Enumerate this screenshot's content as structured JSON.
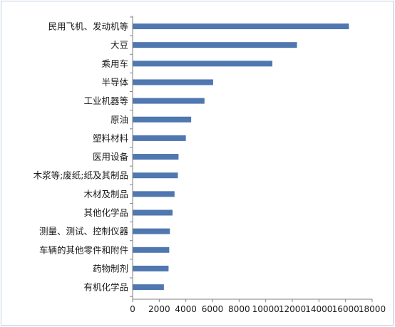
{
  "chart_data": {
    "type": "bar",
    "orientation": "horizontal",
    "categories": [
      "民用飞机、发动机等",
      "大豆",
      "乘用车",
      "半导体",
      "工业机器等",
      "原油",
      "塑料材料",
      "医用设备",
      "木浆等;废纸;纸及其制品",
      "木材及制品",
      "其他化学品",
      "测量、测试、控制仪器",
      "车辆的其他零件和附件",
      "药物制剂",
      "有机化学品"
    ],
    "values": [
      16250,
      12350,
      10500,
      6050,
      5400,
      4400,
      4000,
      3450,
      3400,
      3150,
      3000,
      2800,
      2750,
      2700,
      2350
    ],
    "xlim": [
      0,
      18000
    ],
    "xticks": [
      "0",
      "2000",
      "4000",
      "6000",
      "8000",
      "10000",
      "12000",
      "14000",
      "16000",
      "18000"
    ],
    "grid": false,
    "bar_color": "#4f77b0",
    "title": "",
    "xlabel": "",
    "ylabel": ""
  }
}
